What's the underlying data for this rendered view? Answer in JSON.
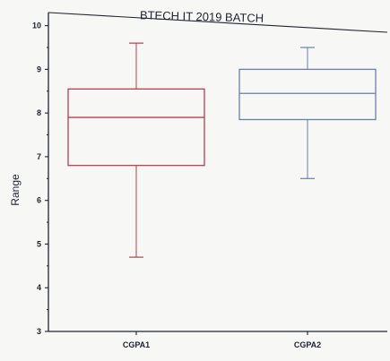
{
  "chart_data": {
    "type": "box",
    "title": "BTECH IT 2019 BATCH",
    "xlabel": "",
    "ylabel": "Range",
    "ylim": [
      3,
      10.3
    ],
    "yticks": [
      3,
      4,
      5,
      6,
      7,
      8,
      9,
      10
    ],
    "categories": [
      "CGPA1",
      "CGPA2"
    ],
    "series": [
      {
        "category": "CGPA1",
        "whisker_low": 4.7,
        "q1": 6.8,
        "median": 7.9,
        "q3": 8.55,
        "whisker_high": 9.6,
        "color": "#b5414c"
      },
      {
        "category": "CGPA2",
        "whisker_low": 6.5,
        "q1": 7.85,
        "median": 8.45,
        "q3": 9.0,
        "whisker_high": 9.5,
        "color": "#6a7fa8"
      }
    ],
    "grid": false,
    "axis_color": "#1f2430"
  }
}
